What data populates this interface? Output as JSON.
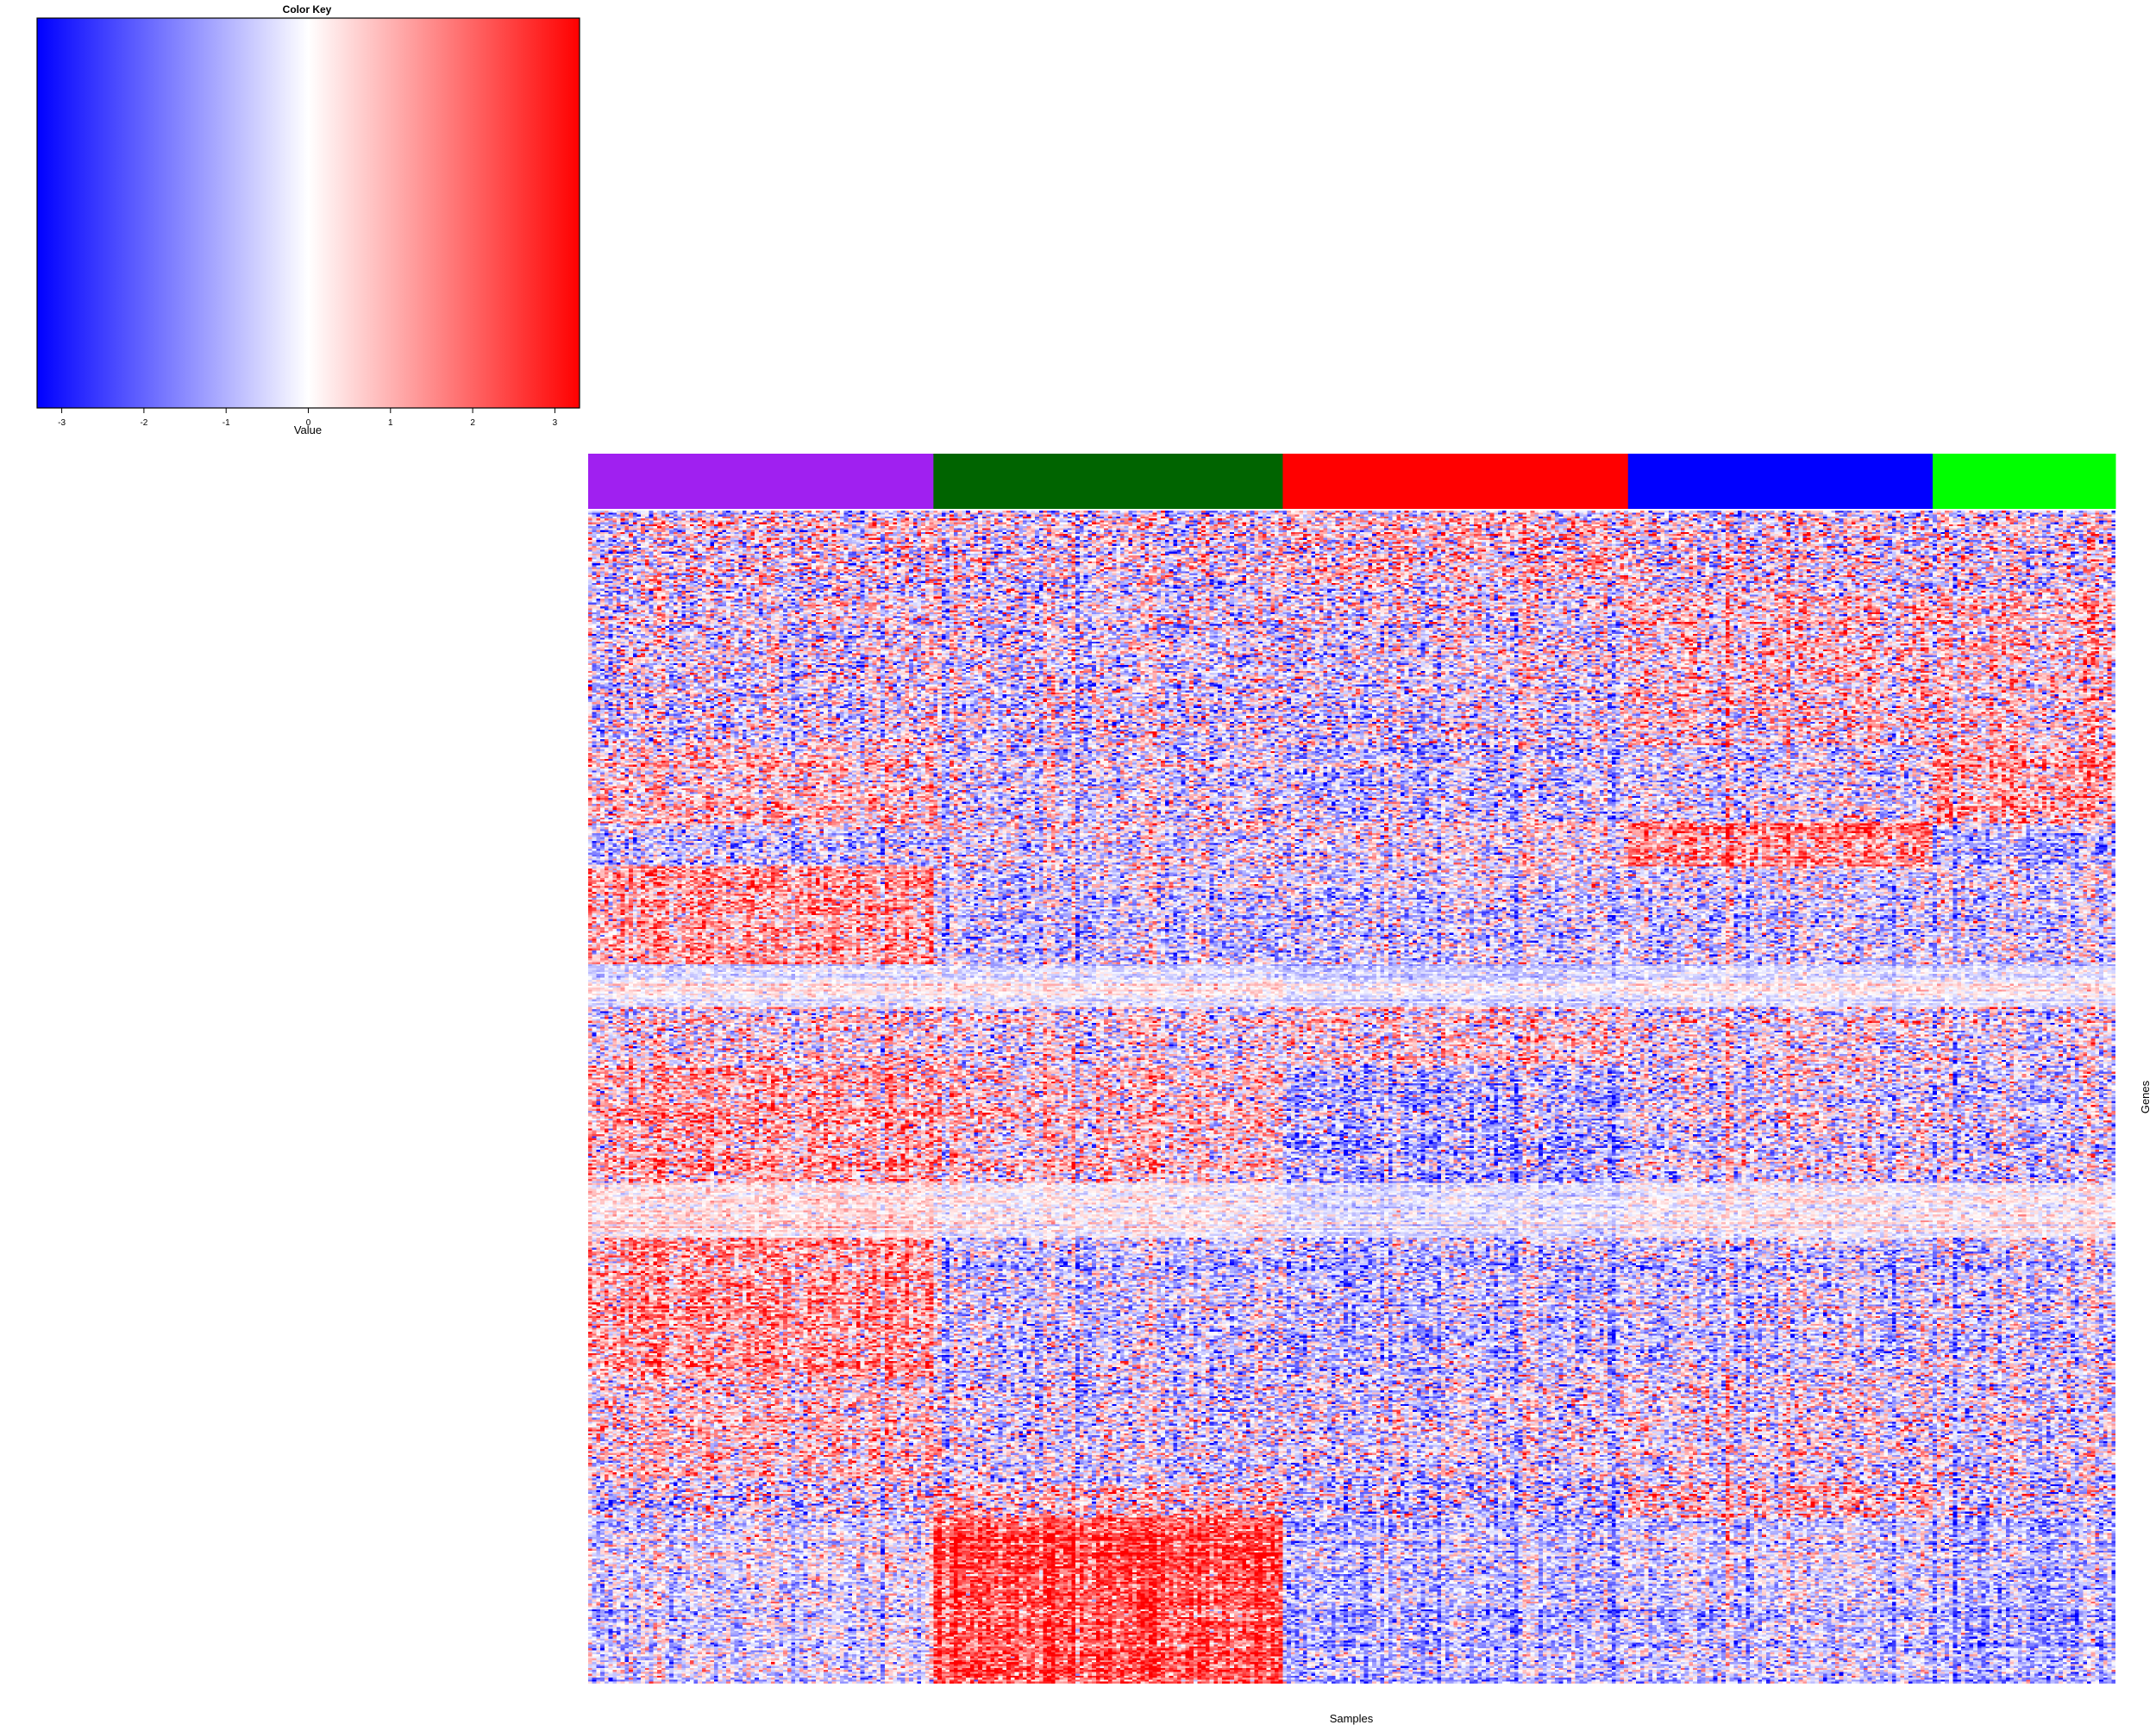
{
  "color_key": {
    "title": "Color Key",
    "xlabel": "Value",
    "range": [
      -3.3,
      3.3
    ],
    "ticks": [
      -3,
      -2,
      -1,
      0,
      1,
      2,
      3
    ],
    "tick_labels": [
      "-3",
      "-2",
      "-1",
      "0",
      "1",
      "2",
      "3"
    ],
    "colors": {
      "low": "#0000ff",
      "mid": "#ffffff",
      "high": "#ff0000"
    }
  },
  "chart_data": {
    "type": "heatmap",
    "title": "",
    "xlabel": "Samples",
    "ylabel": "Genes",
    "value_range": [
      -3.3,
      3.3
    ],
    "colormap": [
      "#0000ff",
      "#ffffff",
      "#ff0000"
    ],
    "column_groups": [
      {
        "color": "#a020f0",
        "n_samples": 85
      },
      {
        "color": "#006400",
        "n_samples": 86
      },
      {
        "color": "#ff0000",
        "n_samples": 85
      },
      {
        "color": "#0000ff",
        "n_samples": 75
      },
      {
        "color": "#00ff00",
        "n_samples": 45
      }
    ],
    "gene_blocks": [
      {
        "genes": 40,
        "mean_by_group": [
          0.1,
          0.0,
          0.4,
          0.1,
          0.0
        ],
        "noise": 1.5
      },
      {
        "genes": 80,
        "mean_by_group": [
          -0.2,
          -0.3,
          -0.3,
          0.5,
          0.5
        ],
        "noise": 1.4
      },
      {
        "genes": 40,
        "mean_by_group": [
          0.7,
          -0.2,
          -0.5,
          -0.1,
          1.1
        ],
        "noise": 1.3
      },
      {
        "genes": 22,
        "mean_by_group": [
          -0.6,
          -0.2,
          0.0,
          1.5,
          -0.9
        ],
        "noise": 1.2
      },
      {
        "genes": 50,
        "mean_by_group": [
          1.2,
          -0.5,
          -0.4,
          -0.3,
          -0.3
        ],
        "noise": 1.2
      },
      {
        "genes": 22,
        "mean_by_group": [
          0.0,
          0.0,
          -0.3,
          0.0,
          0.0
        ],
        "noise": 0.45
      },
      {
        "genes": 30,
        "mean_by_group": [
          0.1,
          -0.1,
          0.3,
          0.0,
          -0.2
        ],
        "noise": 1.3
      },
      {
        "genes": 60,
        "mean_by_group": [
          1.0,
          0.5,
          -0.9,
          -0.1,
          -0.4
        ],
        "noise": 1.3
      },
      {
        "genes": 28,
        "mean_by_group": [
          0.3,
          0.0,
          -0.4,
          0.0,
          0.0
        ],
        "noise": 0.5
      },
      {
        "genes": 70,
        "mean_by_group": [
          1.3,
          -0.4,
          -0.6,
          -0.3,
          -0.3
        ],
        "noise": 1.2
      },
      {
        "genes": 55,
        "mean_by_group": [
          0.6,
          -0.3,
          -0.2,
          0.1,
          -0.2
        ],
        "noise": 1.3
      },
      {
        "genes": 18,
        "mean_by_group": [
          -0.2,
          0.6,
          -0.6,
          0.8,
          -0.2
        ],
        "noise": 1.5
      },
      {
        "genes": 85,
        "mean_by_group": [
          -0.3,
          2.3,
          -0.8,
          -0.4,
          -0.9
        ],
        "noise": 1.0
      }
    ]
  }
}
